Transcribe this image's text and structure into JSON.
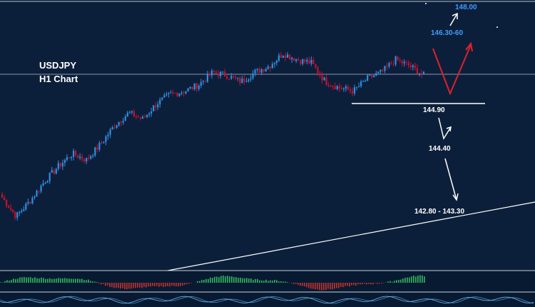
{
  "symbol": "USDJPY",
  "timeframe": "H1 Chart",
  "colors": {
    "background": "#0c1f3a",
    "bull_candle": "#2e8fe0",
    "bear_candle": "#c8102e",
    "projection_red": "#e0202a",
    "projection_white": "#ffffff",
    "target_blue": "#3d9dff",
    "histogram_green": "#2fa85a",
    "histogram_red": "#b03030",
    "oscillator_blue": "#3c8fd8"
  },
  "annotations": {
    "target_high": "148.00",
    "target_mid": "146.30-60",
    "support": "144.90",
    "level_1": "144.40",
    "level_2": "142.80 - 143.30"
  },
  "chart_data": {
    "type": "candlestick",
    "title": "USDJPY H1 Chart",
    "price_levels": [
      148.0,
      146.45,
      144.9,
      144.4,
      143.05
    ],
    "approx_close_path": [
      141.9,
      141.3,
      141.8,
      142.4,
      142.9,
      143.3,
      143.1,
      143.6,
      144.2,
      144.6,
      144.4,
      144.9,
      145.2,
      145.3,
      145.5,
      145.9,
      145.8,
      145.6,
      145.9,
      146.1,
      146.5,
      146.3,
      146.2,
      145.6,
      145.4,
      145.3,
      145.7,
      145.9,
      146.3,
      146.1,
      145.8
    ],
    "projection_red": "down to 144.90 then up toward 146.30-60",
    "projection_white": "down to 144.40 then 142.80 - 143.30"
  }
}
